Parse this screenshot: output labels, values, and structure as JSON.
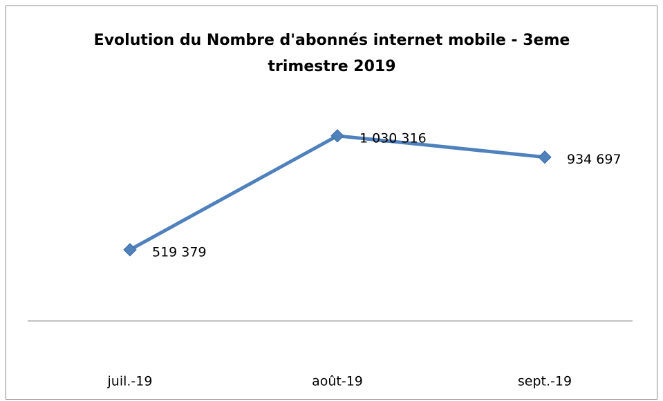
{
  "chart_data": {
    "type": "line",
    "title": "Evolution du Nombre d'abonnés internet mobile - 3eme trimestre 2019",
    "categories": [
      "juil.-19",
      "août-19",
      "sept.-19"
    ],
    "series": [
      {
        "color": "#4f81bd",
        "values": [
          519379,
          1030316,
          934697
        ],
        "value_labels": [
          "519 379",
          "1 030 316",
          "934 697"
        ]
      }
    ],
    "ylim": [
      200000,
      1200000
    ]
  }
}
